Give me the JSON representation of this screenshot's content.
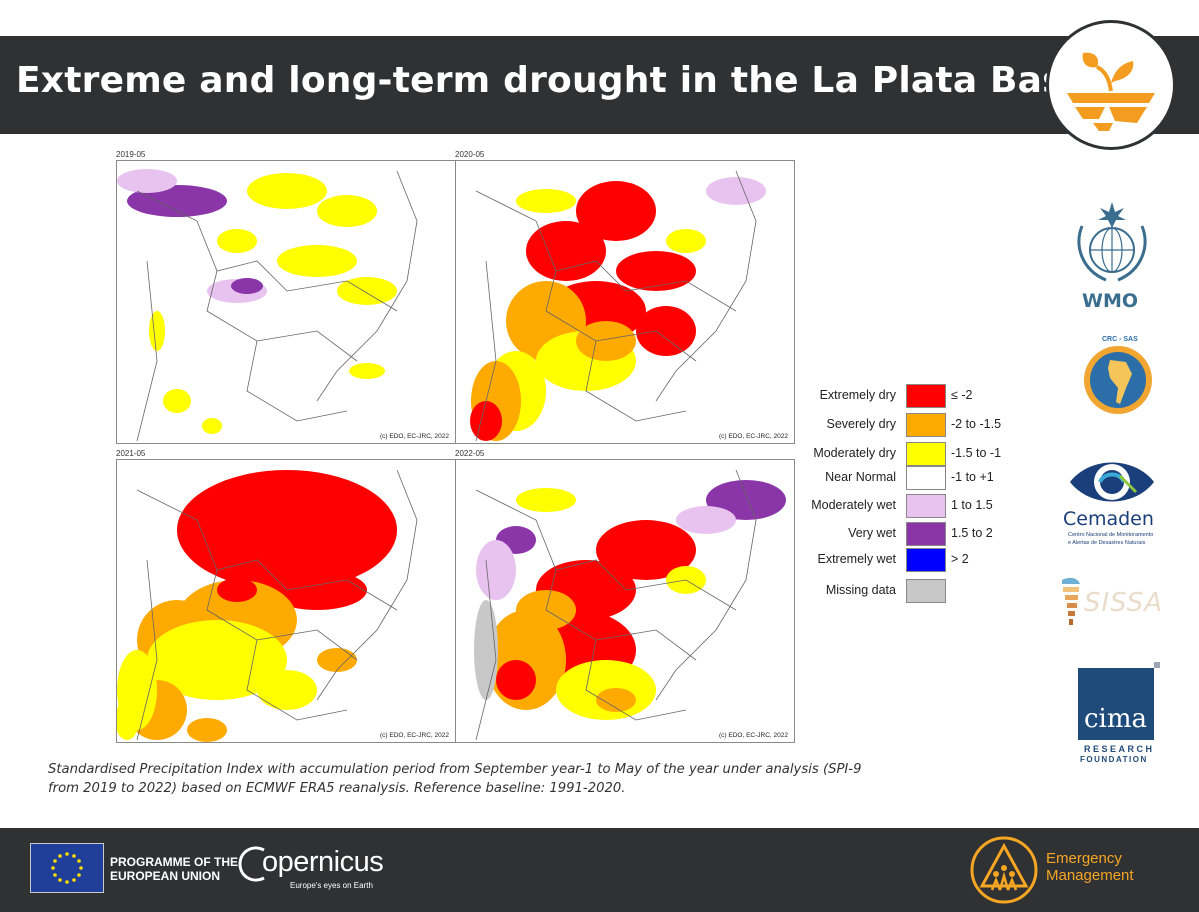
{
  "header": {
    "title": "Extreme and long-term drought in the La Plata Basin"
  },
  "maps": [
    {
      "date": "2019-05",
      "credit": "(c) EDO, EC-JRC, 2022"
    },
    {
      "date": "2020-05",
      "credit": "(c) EDO, EC-JRC, 2022"
    },
    {
      "date": "2021-05",
      "credit": "(c) EDO, EC-JRC, 2022"
    },
    {
      "date": "2022-05",
      "credit": "(c) EDO, EC-JRC, 2022"
    }
  ],
  "legend": [
    {
      "label": "Extremely dry",
      "range": "≤ -2",
      "color": "#ff0000"
    },
    {
      "label": "Severely dry",
      "range": "-2 to -1.5",
      "color": "#ffaa00"
    },
    {
      "label": "Moderately dry",
      "range": "-1.5 to -1",
      "color": "#ffff00"
    },
    {
      "label": "Near Normal",
      "range": "-1 to +1",
      "color": "#ffffff"
    },
    {
      "label": "Moderately wet",
      "range": "1 to 1.5",
      "color": "#e8c3f0"
    },
    {
      "label": "Very wet",
      "range": "1.5 to 2",
      "color": "#8a35a8"
    },
    {
      "label": "Extremely wet",
      "range": "> 2",
      "color": "#0000ff"
    },
    {
      "label": "Missing data",
      "range": "",
      "color": "#c8c8c8"
    }
  ],
  "caption": "Standardised Precipitation Index with accumulation period from September year-1 to May of the year under analysis (SPI-9 from 2019 to 2022) based on ECMWF ERA5 reanalysis. Reference baseline: 1991-2020.",
  "partners": {
    "wmo": "WMO",
    "crc_sas": "CRC - SAS",
    "cemaden": "Cemaden",
    "cemaden_sub1": "Centro Nacional de Monitoramento",
    "cemaden_sub2": "e Alertas de Desastres Naturais",
    "sissa": "SISSA",
    "cima": "cima",
    "cima_sub1": "RESEARCH",
    "cima_sub2": "FOUNDATION"
  },
  "footer": {
    "eu_line1": "PROGRAMME OF THE",
    "eu_line2": "EUROPEAN UNION",
    "copernicus": "opernicus",
    "copernicus_tagline": "Europe's eyes on Earth",
    "em_line1": "Emergency",
    "em_line2": "Management"
  }
}
